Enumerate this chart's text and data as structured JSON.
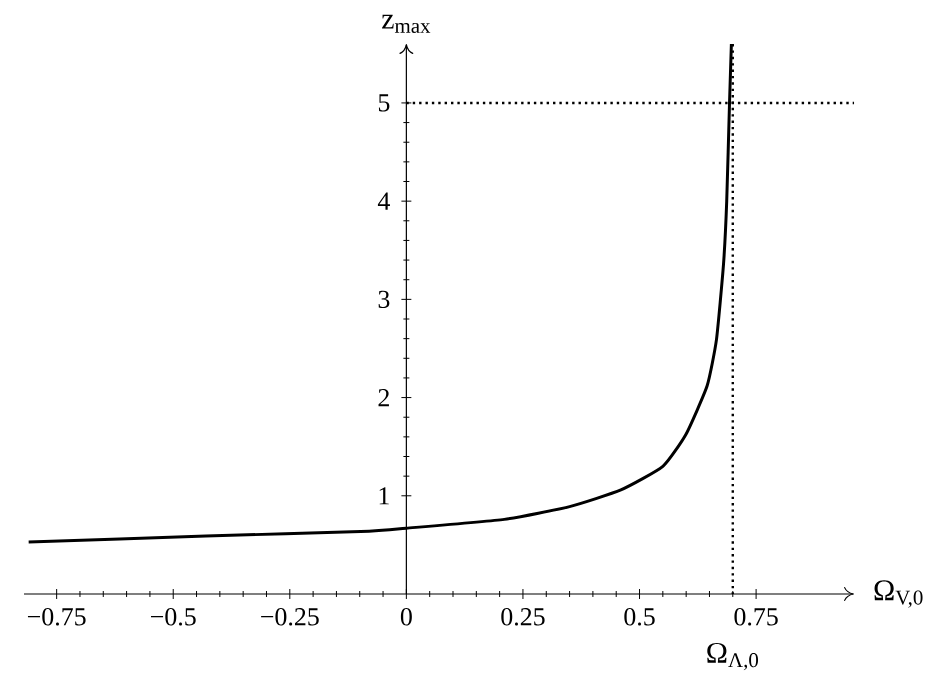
{
  "chart_data": {
    "type": "line",
    "xlabel": "Ω$_{V,0}$",
    "ylabel": "z$_{max}$",
    "xlim": [
      -0.82,
      0.96
    ],
    "ylim": [
      0,
      5.6
    ],
    "xticks": [
      {
        "value": -0.75,
        "label": "−0.75"
      },
      {
        "value": -0.5,
        "label": "−0.5"
      },
      {
        "value": -0.25,
        "label": "−0.25"
      },
      0,
      0.25,
      0.5,
      0.75
    ],
    "yticks": [
      1,
      2,
      3,
      4,
      5
    ],
    "x": [
      -0.81,
      -0.43,
      -0.08,
      0,
      0.21,
      0.35,
      0.46,
      0.55,
      0.6,
      0.645,
      0.665,
      0.68,
      0.687,
      0.693,
      0.697
    ],
    "series": [
      {
        "color": "#000000",
        "values": [
          0.53,
          0.59,
          0.64,
          0.67,
          0.76,
          0.89,
          1.06,
          1.3,
          1.63,
          2.12,
          2.59,
          3.35,
          4.0,
          5.0,
          5.6
        ]
      }
    ],
    "ref_lines": [
      {
        "axis": "x",
        "value": 0.7,
        "label": "Ω$_{Λ,0}$",
        "line_style": "dotted",
        "color": "#000000"
      },
      {
        "axis": "y",
        "value": 5,
        "line_style": "dotted",
        "color": "#000000"
      }
    ]
  }
}
